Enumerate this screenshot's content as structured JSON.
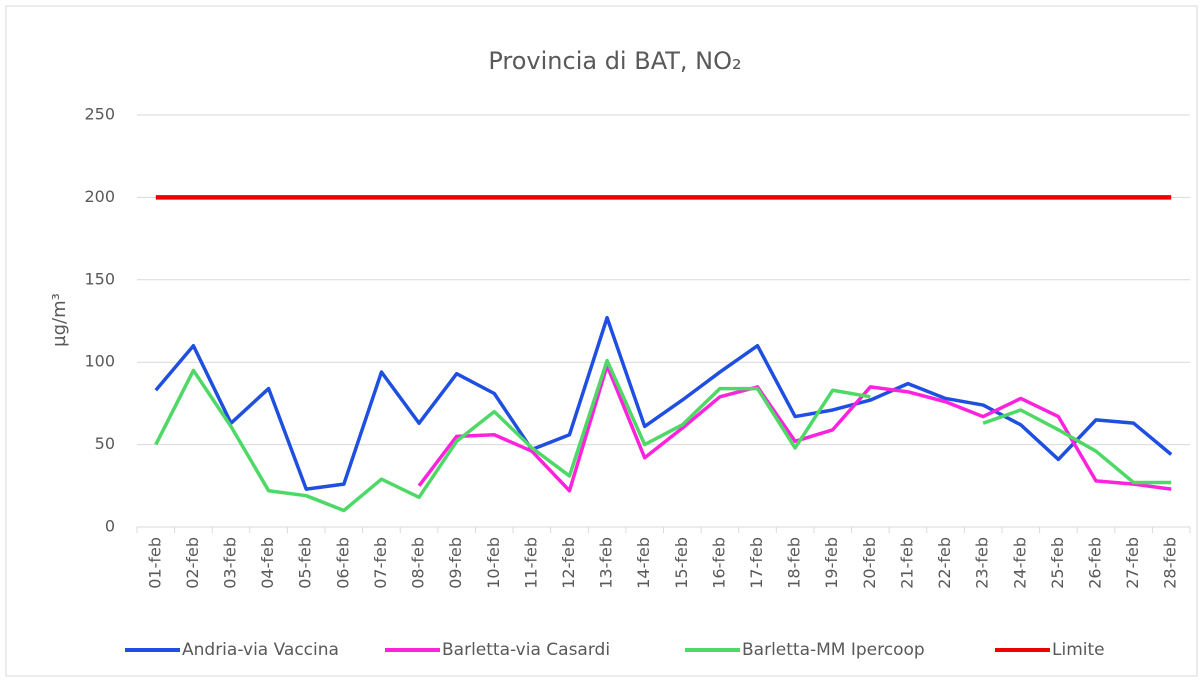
{
  "chart_data": {
    "type": "line",
    "title": "Provincia di BAT, NO₂",
    "y_label": "µg/m³",
    "categories": [
      "01-feb",
      "02-feb",
      "03-feb",
      "04-feb",
      "05-feb",
      "06-feb",
      "07-feb",
      "08-feb",
      "09-feb",
      "10-feb",
      "11-feb",
      "12-feb",
      "13-feb",
      "14-feb",
      "15-feb",
      "16-feb",
      "17-feb",
      "18-feb",
      "19-feb",
      "20-feb",
      "21-feb",
      "22-feb",
      "23-feb",
      "24-feb",
      "25-feb",
      "26-feb",
      "27-feb",
      "28-feb"
    ],
    "series": [
      {
        "name": "Andria-via Vaccina",
        "color": "#1f4fe0",
        "values": [
          83,
          110,
          63,
          84,
          23,
          26,
          94,
          63,
          93,
          81,
          47,
          56,
          127,
          61,
          77,
          94,
          110,
          67,
          71,
          77,
          87,
          78,
          74,
          62,
          41,
          65,
          63,
          44
        ]
      },
      {
        "name": "Barletta-via Casardi",
        "color": "#ff22dd",
        "values": [
          null,
          null,
          null,
          null,
          null,
          null,
          null,
          25,
          55,
          56,
          46,
          22,
          98,
          42,
          60,
          79,
          85,
          52,
          59,
          85,
          82,
          76,
          67,
          78,
          67,
          28,
          26,
          23
        ]
      },
      {
        "name": "Barletta-MM Ipercoop",
        "color": "#4ed865",
        "values": [
          50,
          95,
          61,
          22,
          19,
          10,
          29,
          18,
          52,
          70,
          48,
          31,
          101,
          50,
          62,
          84,
          84,
          48,
          83,
          79,
          null,
          null,
          63,
          71,
          59,
          46,
          27,
          27
        ]
      },
      {
        "name": "Limite",
        "color": "#ee0000",
        "values": [
          200,
          200,
          200,
          200,
          200,
          200,
          200,
          200,
          200,
          200,
          200,
          200,
          200,
          200,
          200,
          200,
          200,
          200,
          200,
          200,
          200,
          200,
          200,
          200,
          200,
          200,
          200,
          200
        ]
      }
    ],
    "ylim": [
      0,
      250
    ],
    "yticks": [
      0,
      50,
      100,
      150,
      200,
      250
    ],
    "grid": true,
    "legend": "bottom"
  }
}
